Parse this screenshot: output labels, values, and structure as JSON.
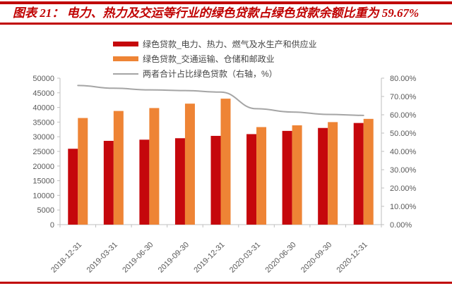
{
  "header": {
    "title": "图表 21： 电力、热力及交运等行业的绿色贷款占绿色贷款余额比重为 59.67%"
  },
  "colors": {
    "accent_red": "#c00000",
    "bar_power": "#c5070c",
    "bar_transport": "#ee8435",
    "line_gray": "#a5a5a5",
    "axis_line": "#bfbfbf",
    "axis_text": "#595959",
    "legend_text": "#444444"
  },
  "chart_data": {
    "type": "bar",
    "subtype": "grouped-bar-with-line",
    "title": "图表 21： 电力、热力及交运等行业的绿色贷款占绿色贷款余额比重为 59.67%",
    "categories": [
      "2018-12-31",
      "2019-03-31",
      "2019-06-30",
      "2019-09-30",
      "2019-12-31",
      "2020-03-31",
      "2020-06-30",
      "2020-09-30",
      "2020-12-31"
    ],
    "series": [
      {
        "name": "绿色贷款_电力、热力、燃气及水生产和供应业",
        "type": "bar",
        "axis": "left",
        "color": "#c5070c",
        "values": [
          25900,
          28600,
          29000,
          29500,
          30300,
          30900,
          32000,
          33000,
          34700
        ]
      },
      {
        "name": "绿色贷款_交通运输、仓储和邮政业",
        "type": "bar",
        "axis": "left",
        "color": "#ee8435",
        "values": [
          36400,
          38800,
          39800,
          41300,
          43000,
          33300,
          33900,
          35000,
          36100
        ]
      },
      {
        "name": "两者合计占比绿色贷款（右轴，%）",
        "type": "line",
        "axis": "right",
        "color": "#a5a5a5",
        "values": [
          76.0,
          74.5,
          73.6,
          73.2,
          72.4,
          63.3,
          61.5,
          60.2,
          59.67
        ]
      }
    ],
    "left_axis": {
      "min": 0,
      "max": 50000,
      "step": 5000,
      "tick_labels": [
        "0",
        "5000",
        "10000",
        "15000",
        "20000",
        "25000",
        "30000",
        "35000",
        "40000",
        "45000",
        "50000"
      ]
    },
    "right_axis": {
      "min": 0,
      "max": 80,
      "step": 10,
      "tick_labels": [
        "0.00%",
        "10.00%",
        "20.00%",
        "30.00%",
        "40.00%",
        "50.00%",
        "60.00%",
        "70.00%",
        "80.00%"
      ]
    },
    "grid": false,
    "legend_position": "top-center"
  }
}
